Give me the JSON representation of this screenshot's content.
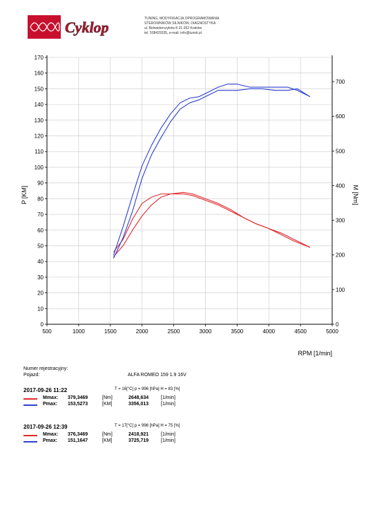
{
  "header": {
    "logo_text": "Cyklop",
    "company_lines": [
      "TUNING, MODYFIKACJA OPROGRAMOWANIA",
      "STEROWNIKÓW SILNIKÓW, DIAGNOSTYKA",
      "ul. Belwederczyków 8 31-262 Kraków",
      "tel. 508429335, e-mail: info@tunnit.pl"
    ]
  },
  "colors": {
    "red": "#e0262a",
    "blue": "#2b3fd0",
    "grid": "#c8c8c8"
  },
  "chart_data": {
    "type": "line",
    "xlabel": "RPM [1/min]",
    "ylabel_left": "P [KM]",
    "ylabel_right": "M [Nm]",
    "xlim": [
      500,
      5000
    ],
    "ylim_left": [
      0,
      170
    ],
    "ylim_right": [
      0,
      770
    ],
    "x_ticks": [
      500,
      1000,
      1500,
      2000,
      2500,
      3000,
      3500,
      4000,
      4500,
      5000
    ],
    "y_ticks_left": [
      0,
      10,
      20,
      30,
      40,
      50,
      60,
      70,
      80,
      90,
      100,
      110,
      120,
      130,
      140,
      150,
      160,
      170
    ],
    "y_ticks_right": [
      0,
      100,
      200,
      300,
      400,
      500,
      600,
      700
    ],
    "grid": true,
    "series": [
      {
        "color": "red",
        "axis": "left",
        "x": [
          1550,
          1700,
          1850,
          2000,
          2150,
          2300,
          2450,
          2650,
          2800,
          3000,
          3200,
          3400,
          3600,
          3800,
          4000,
          4200,
          4400,
          4650
        ],
        "y": [
          46,
          54,
          67,
          77,
          81,
          83,
          83,
          83,
          82,
          79,
          76,
          72,
          68,
          64,
          61,
          58,
          54,
          49
        ]
      },
      {
        "color": "red",
        "axis": "left",
        "x": [
          1550,
          1700,
          1850,
          2000,
          2150,
          2300,
          2450,
          2650,
          2800,
          3000,
          3200,
          3400,
          3600,
          3800,
          4000,
          4200,
          4400,
          4650
        ],
        "y": [
          43,
          50,
          60,
          69,
          76,
          81,
          83,
          84,
          83,
          80,
          77,
          73,
          68,
          64,
          61,
          57,
          53,
          49
        ]
      },
      {
        "color": "blue",
        "axis": "left",
        "x": [
          1550,
          1700,
          1850,
          2000,
          2150,
          2300,
          2450,
          2600,
          2750,
          2900,
          3050,
          3200,
          3350,
          3500,
          3700,
          3900,
          4100,
          4300,
          4450,
          4650
        ],
        "y": [
          44,
          62,
          82,
          101,
          114,
          125,
          134,
          141,
          144,
          145,
          148,
          151,
          153,
          153,
          151,
          151,
          151,
          151,
          149,
          145
        ]
      },
      {
        "color": "blue",
        "axis": "left",
        "x": [
          1550,
          1700,
          1850,
          2000,
          2150,
          2300,
          2450,
          2600,
          2750,
          2900,
          3050,
          3200,
          3350,
          3500,
          3700,
          3900,
          4100,
          4300,
          4450,
          4650
        ],
        "y": [
          42,
          55,
          72,
          93,
          108,
          119,
          129,
          137,
          141,
          143,
          146,
          149,
          149,
          149,
          150,
          150,
          149,
          149,
          150,
          145
        ]
      }
    ]
  },
  "info": {
    "reg_label": "Numer rejestracyjny:",
    "vehicle_label": "Pojazd:",
    "vehicle_value": "ALFA ROMEO   159 1.9 16V",
    "runs": [
      {
        "datetime": "2017-09-26  11:22",
        "conditions": "T = 16[°C]  p = 996 [hPa]  H = 83 [%]",
        "mmax_label": "Mmax:",
        "mmax_value": "379,3469",
        "mmax_unit": "[Nm]",
        "mmax_rpm": "2648,634",
        "mmax_rpm_unit": "[1/min]",
        "pmax_label": "Pmax:",
        "pmax_value": "153,5273",
        "pmax_unit": "[KM]",
        "pmax_rpm": "3356,013",
        "pmax_rpm_unit": "[1/min]"
      },
      {
        "datetime": "2017-09-26  12:39",
        "conditions": "T = 17[°C]  p = 996 [hPa]  H = 75 [%]",
        "mmax_label": "Mmax:",
        "mmax_value": "376,3469",
        "mmax_unit": "[Nm]",
        "mmax_rpm": "2418,921",
        "mmax_rpm_unit": "[1/min]",
        "pmax_label": "Pmax:",
        "pmax_value": "151,1647",
        "pmax_unit": "[KM]",
        "pmax_rpm": "3725,719",
        "pmax_rpm_unit": "[1/min]"
      }
    ]
  }
}
